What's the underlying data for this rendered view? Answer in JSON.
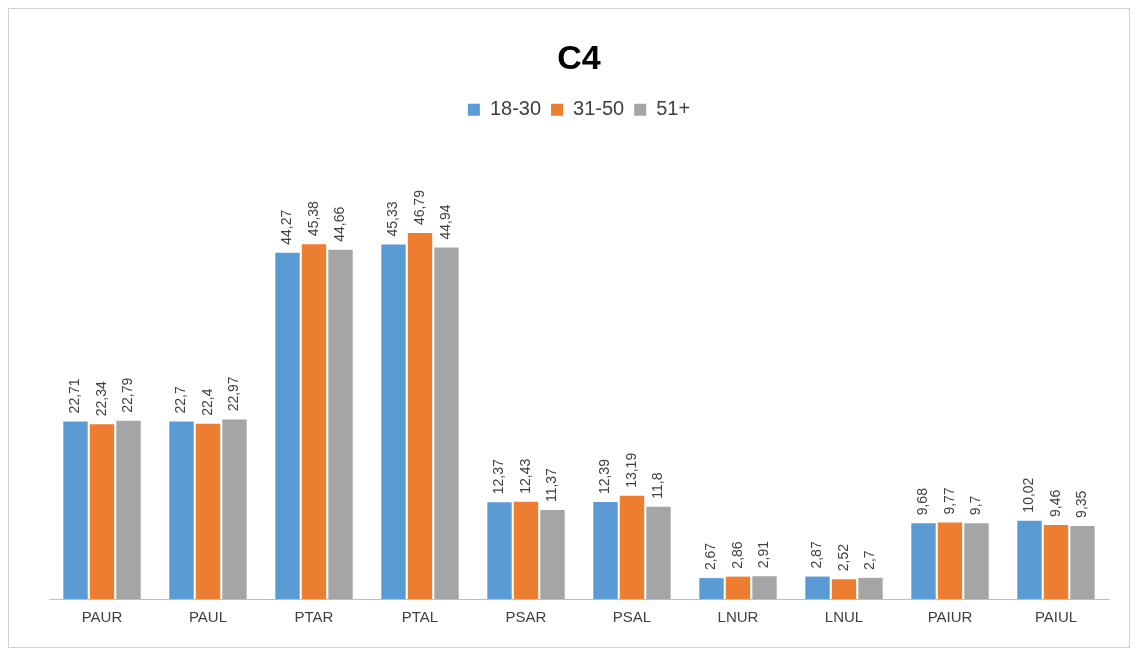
{
  "chart_data": {
    "type": "bar",
    "title": "C4",
    "categories": [
      "PAUR",
      "PAUL",
      "PTAR",
      "PTAL",
      "PSAR",
      "PSAL",
      "LNUR",
      "LNUL",
      "PAIUR",
      "PAIUL"
    ],
    "legend": "top",
    "grid": false,
    "tick_labels": "x",
    "series": [
      {
        "name": "18-30",
        "color": "#5b9bd5",
        "values": [
          22.71,
          22.7,
          44.27,
          45.33,
          12.37,
          12.39,
          2.67,
          2.87,
          9.68,
          10.02
        ],
        "value_labels": [
          "22,71",
          "22,7",
          "44,27",
          "45,33",
          "12,37",
          "12,39",
          "2,67",
          "2,87",
          "9,68",
          "10,02"
        ]
      },
      {
        "name": "31-50",
        "color": "#ed7d31",
        "values": [
          22.34,
          22.4,
          45.38,
          46.79,
          12.43,
          13.19,
          2.86,
          2.52,
          9.77,
          9.46
        ],
        "value_labels": [
          "22,34",
          "22,4",
          "45,38",
          "46,79",
          "12,43",
          "13,19",
          "2,86",
          "2,52",
          "9,77",
          "9,46"
        ]
      },
      {
        "name": "51+",
        "color": "#a5a5a5",
        "values": [
          22.79,
          22.97,
          44.66,
          44.94,
          11.37,
          11.8,
          2.91,
          2.7,
          9.7,
          9.35
        ],
        "value_labels": [
          "22,79",
          "22,97",
          "44,66",
          "44,94",
          "11,37",
          "11,8",
          "2,91",
          "2,7",
          "9,7",
          "9,35"
        ]
      }
    ]
  }
}
